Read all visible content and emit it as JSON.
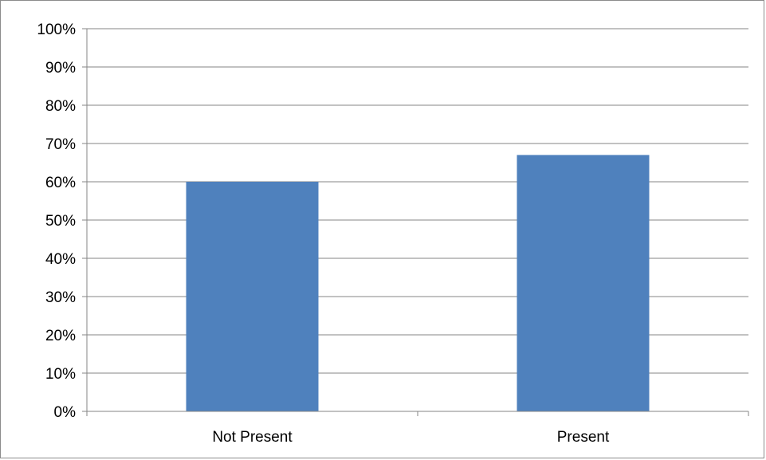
{
  "chart_data": {
    "type": "bar",
    "title": "",
    "xlabel": "",
    "ylabel": "",
    "categories": [
      "Not Present",
      "Present"
    ],
    "values": [
      60,
      67
    ],
    "ylim": [
      0,
      100
    ],
    "y_ticks": [
      0,
      10,
      20,
      30,
      40,
      50,
      60,
      70,
      80,
      90,
      100
    ],
    "y_tick_labels": [
      "0%",
      "10%",
      "20%",
      "30%",
      "40%",
      "50%",
      "60%",
      "70%",
      "80%",
      "90%",
      "100%"
    ],
    "grid": true,
    "legend": "none",
    "bar_color": "#4f81bd",
    "grid_color": "#868686"
  }
}
